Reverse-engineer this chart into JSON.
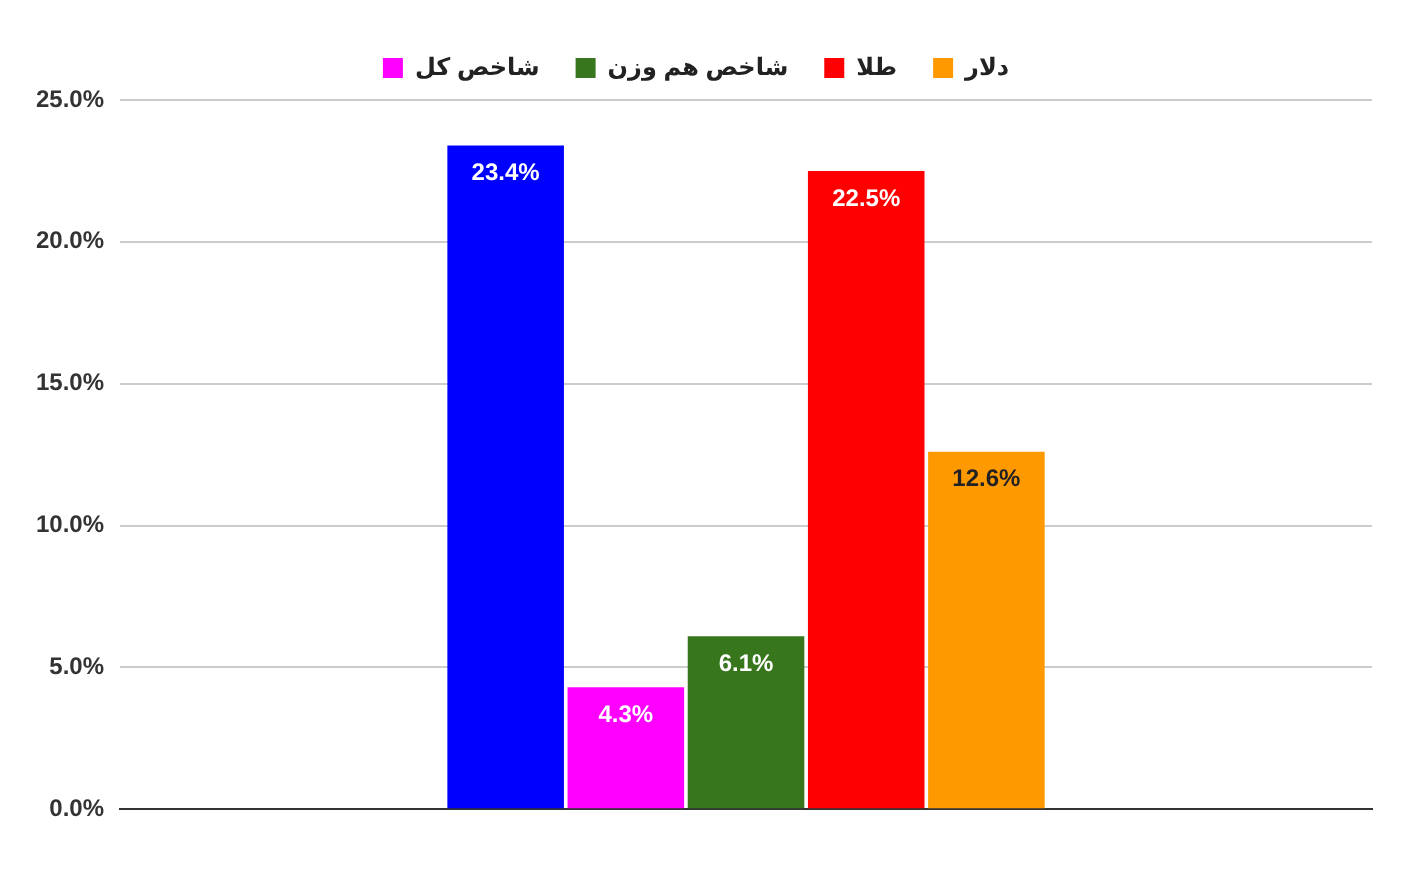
{
  "chart_data": {
    "type": "bar",
    "categories": [
      null
    ],
    "series": [
      {
        "color": "#0000ff",
        "values": [
          23.4
        ],
        "value_labels": [
          "23.4%"
        ]
      },
      {
        "name": "شاخص کل",
        "color": "#ff00ff",
        "values": [
          4.3
        ],
        "value_labels": [
          "4.3%"
        ]
      },
      {
        "name": "شاخص هم وزن",
        "color": "#38761d",
        "values": [
          6.1
        ],
        "value_labels": [
          "6.1%"
        ]
      },
      {
        "name": "طلا",
        "color": "#ff0000",
        "values": [
          22.5
        ],
        "value_labels": [
          "22.5%"
        ]
      },
      {
        "name": "دلار",
        "color": "#ff9900",
        "values": [
          12.6
        ],
        "value_labels": [
          "12.6%"
        ]
      }
    ],
    "ylim": [
      0,
      25
    ],
    "yticks": [
      {
        "value": 0,
        "label": "0.0%"
      },
      {
        "value": 5,
        "label": "5.0%"
      },
      {
        "value": 10,
        "label": "10.0%"
      },
      {
        "value": 15,
        "label": "15.0%"
      },
      {
        "value": 20,
        "label": "20.0%"
      },
      {
        "value": 25,
        "label": "25.0%"
      }
    ],
    "grid": "y",
    "legend": "top"
  }
}
